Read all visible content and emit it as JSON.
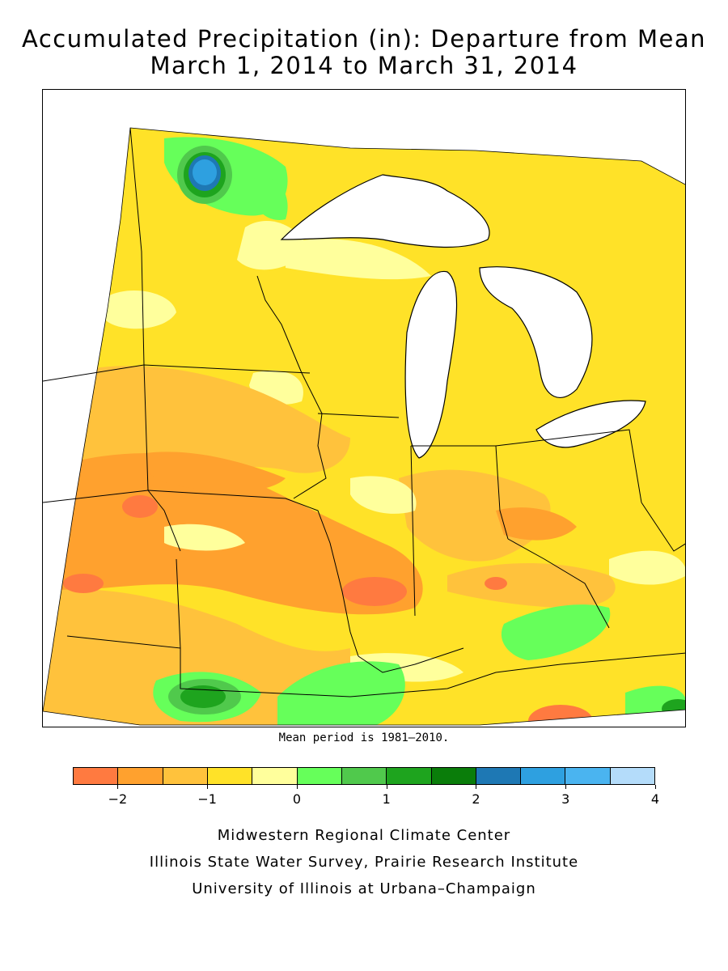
{
  "title_line1": "Accumulated Precipitation (in): Departure from Mean",
  "title_line2": "March 1, 2014 to March 31, 2014",
  "note": "Mean period is 1981–2010.",
  "legend": {
    "colors": [
      "#ff7a40",
      "#ffa12e",
      "#ffc23c",
      "#ffe228",
      "#ffff9c",
      "#66ff5a",
      "#50c94c",
      "#1ea41e",
      "#0a7d0a",
      "#1e78b4",
      "#2ea0e0",
      "#4ab4f0",
      "#b4dcfa"
    ],
    "tick_labels": [
      "−2",
      "−1",
      "0",
      "1",
      "2",
      "3",
      "4"
    ]
  },
  "credits": [
    "Midwestern Regional Climate Center",
    "Illinois State Water Survey, Prairie Research Institute",
    "University of Illinois at Urbana–Champaign"
  ],
  "map": {
    "water_color": "#ffffff",
    "zones": [
      {
        "label": "wet-minnesota-northwest",
        "value": 3.0,
        "color": "#2ea0e0"
      },
      {
        "label": "wet-southeast-missouri",
        "value": 1.0,
        "color": "#1ea41e"
      },
      {
        "label": "wet-kentucky-east",
        "value": 0.5,
        "color": "#66ff5a"
      },
      {
        "label": "dry-illinois-central",
        "value": -2.0,
        "color": "#ff7a40"
      },
      {
        "label": "dry-iowa-south",
        "value": -1.5,
        "color": "#ffa12e"
      }
    ]
  }
}
